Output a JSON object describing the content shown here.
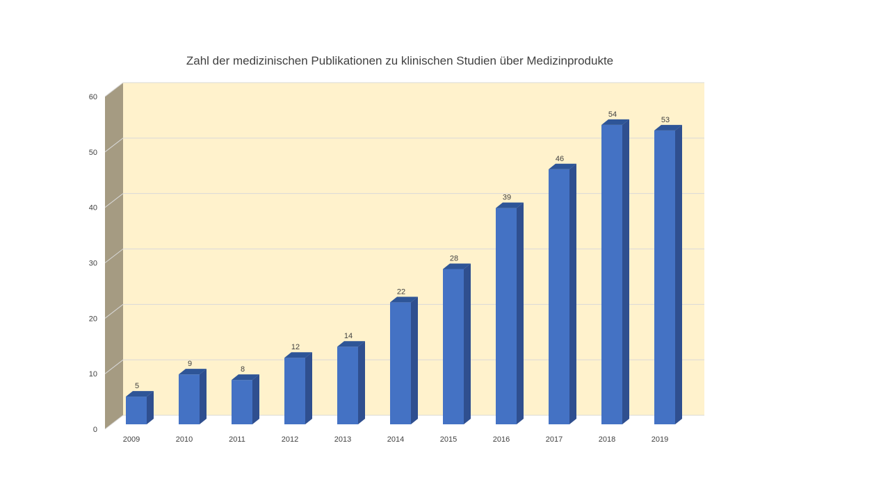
{
  "chart_data": {
    "type": "bar",
    "title": "Zahl der medizinischen Publikationen zu klinischen Studien über Medizinprodukte",
    "categories": [
      "2009",
      "2010",
      "2011",
      "2012",
      "2013",
      "2014",
      "2015",
      "2016",
      "2017",
      "2018",
      "2019"
    ],
    "values": [
      5,
      9,
      8,
      12,
      14,
      22,
      28,
      39,
      46,
      54,
      53
    ],
    "data_labels": [
      "5",
      "9",
      "8",
      "12",
      "14",
      "22",
      "28",
      "39",
      "46",
      "54",
      "53"
    ],
    "yticks": [
      "0",
      "10",
      "20",
      "30",
      "40",
      "50",
      "60"
    ],
    "ylim": [
      0,
      60
    ],
    "grid": true,
    "three_d": true,
    "legend": "none"
  },
  "colors": {
    "bar_front": "#4472C4",
    "bar_side": "#2F4F8F",
    "bar_top": "#2E5597",
    "back_wall": "#FFF2CC",
    "side_wall": "#A59B82",
    "gridline": "#D9D9D9",
    "title_text": "#404040",
    "label_text": "#404040"
  }
}
